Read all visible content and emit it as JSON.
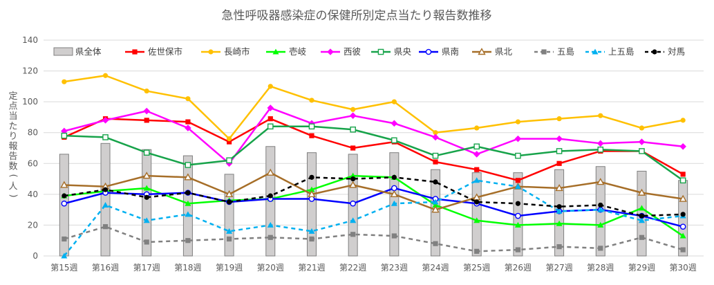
{
  "chart_data": {
    "type": "bar+line",
    "title": "急性呼吸器感染症の保健所別定点当たり報告数推移",
    "ylabel": "定点当たり報告数（人）",
    "xlabel": "",
    "ylim": [
      0,
      140
    ],
    "yticks": [
      "0",
      "20",
      "40",
      "60",
      "80",
      "100",
      "120",
      "140"
    ],
    "grid": "horizontal",
    "legend": "top",
    "categories": [
      "第15週",
      "第16週",
      "第17週",
      "第18週",
      "第19週",
      "第20週",
      "第21週",
      "第22週",
      "第23週",
      "第24週",
      "第25週",
      "第26週",
      "第27週",
      "第28週",
      "第29週",
      "第30週"
    ],
    "bar": {
      "name": "県全体",
      "color": "#d0cece",
      "values": [
        66,
        73,
        69,
        65,
        53,
        71,
        67,
        66,
        67,
        56,
        54,
        54,
        56,
        58,
        55,
        49
      ]
    },
    "series": [
      {
        "name": "佐世保市",
        "color": "#ff0000",
        "marker": "square",
        "dash": false,
        "values": [
          77,
          89,
          88,
          87,
          74,
          89,
          78,
          70,
          74,
          61,
          56,
          49,
          60,
          68,
          68,
          53
        ]
      },
      {
        "name": "長崎市",
        "color": "#ffc000",
        "marker": "circle",
        "dash": false,
        "values": [
          113,
          117,
          107,
          102,
          76,
          110,
          101,
          95,
          100,
          80,
          83,
          87,
          89,
          91,
          83,
          88
        ]
      },
      {
        "name": "壱岐",
        "color": "#00ff00",
        "marker": "triangle",
        "dash": false,
        "values": [
          39,
          42,
          44,
          34,
          36,
          37,
          43,
          52,
          51,
          33,
          23,
          20,
          21,
          20,
          31,
          13
        ]
      },
      {
        "name": "西彼",
        "color": "#ff00ff",
        "marker": "diamond",
        "dash": false,
        "values": [
          81,
          88,
          94,
          83,
          60,
          96,
          86,
          91,
          86,
          77,
          66,
          76,
          76,
          73,
          74,
          71
        ]
      },
      {
        "name": "県央",
        "color": "#17a34a",
        "marker": "hollow-square",
        "dash": false,
        "values": [
          78,
          77,
          67,
          59,
          62,
          84,
          84,
          82,
          75,
          65,
          71,
          65,
          68,
          69,
          68,
          49
        ]
      },
      {
        "name": "県南",
        "color": "#0000ff",
        "marker": "hollow-circle",
        "dash": false,
        "values": [
          34,
          41,
          40,
          41,
          35,
          37,
          37,
          34,
          44,
          37,
          34,
          26,
          29,
          30,
          26,
          19
        ]
      },
      {
        "name": "県北",
        "color": "#a66e28",
        "marker": "hollow-triangle",
        "dash": false,
        "values": [
          46,
          45,
          52,
          51,
          40,
          54,
          40,
          46,
          40,
          30,
          38,
          45,
          44,
          48,
          41,
          37
        ]
      },
      {
        "name": "五島",
        "color": "#808080",
        "marker": "square",
        "dash": true,
        "values": [
          11,
          19,
          9,
          10,
          11,
          12,
          11,
          14,
          13,
          8,
          3,
          4,
          6,
          5,
          12,
          4
        ]
      },
      {
        "name": "上五島",
        "color": "#00b0f0",
        "marker": "triangle",
        "dash": true,
        "values": [
          0,
          33,
          23,
          27,
          16,
          20,
          16,
          23,
          34,
          35,
          49,
          45,
          29,
          30,
          23,
          26
        ]
      },
      {
        "name": "対馬",
        "color": "#000000",
        "marker": "circle",
        "dash": true,
        "values": [
          39,
          43,
          38,
          41,
          35,
          39,
          51,
          50,
          51,
          48,
          35,
          34,
          32,
          33,
          26,
          27
        ]
      }
    ]
  }
}
